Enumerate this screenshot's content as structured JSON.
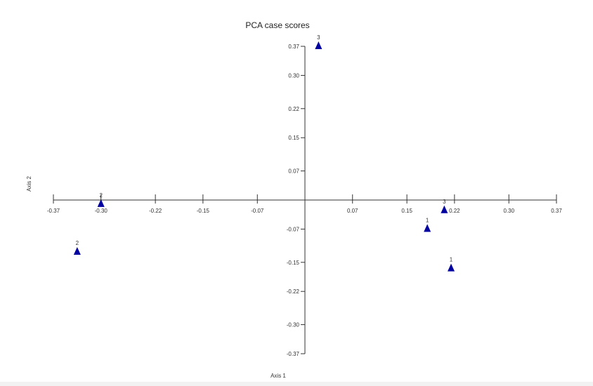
{
  "chart_data": {
    "type": "scatter",
    "title": "PCA case scores",
    "xlabel": "Axis 1",
    "ylabel": "Axis 2",
    "xlim": [
      -0.37,
      0.37
    ],
    "ylim": [
      -0.37,
      0.37
    ],
    "x_ticks": [
      -0.37,
      -0.3,
      -0.22,
      -0.15,
      -0.07,
      0.07,
      0.15,
      0.22,
      0.3,
      0.37
    ],
    "x_tick_labels": [
      "-0.37",
      "-0.30",
      "-0.22",
      "-0.15",
      "-0.07",
      "0.07",
      "0.15",
      "0.22",
      "0.30",
      "0.37"
    ],
    "y_ticks": [
      0.37,
      0.3,
      0.22,
      0.15,
      0.07,
      -0.07,
      -0.15,
      -0.22,
      -0.3,
      -0.37
    ],
    "y_tick_labels": [
      "0.37",
      "0.30",
      "0.22",
      "0.15",
      "0.07",
      "-0.07",
      "-0.15",
      "-0.22",
      "-0.30",
      "-0.37"
    ],
    "marker": "triangle",
    "marker_color": "#0000a0",
    "points": [
      {
        "x": 0.02,
        "y": 0.37,
        "label": "3"
      },
      {
        "x": -0.3,
        "y": -0.01,
        "label": "2"
      },
      {
        "x": -0.335,
        "y": -0.125,
        "label": "2"
      },
      {
        "x": 0.18,
        "y": -0.07,
        "label": "1"
      },
      {
        "x": 0.205,
        "y": -0.025,
        "label": "3"
      },
      {
        "x": 0.215,
        "y": -0.165,
        "label": "1"
      }
    ],
    "grid": false
  }
}
